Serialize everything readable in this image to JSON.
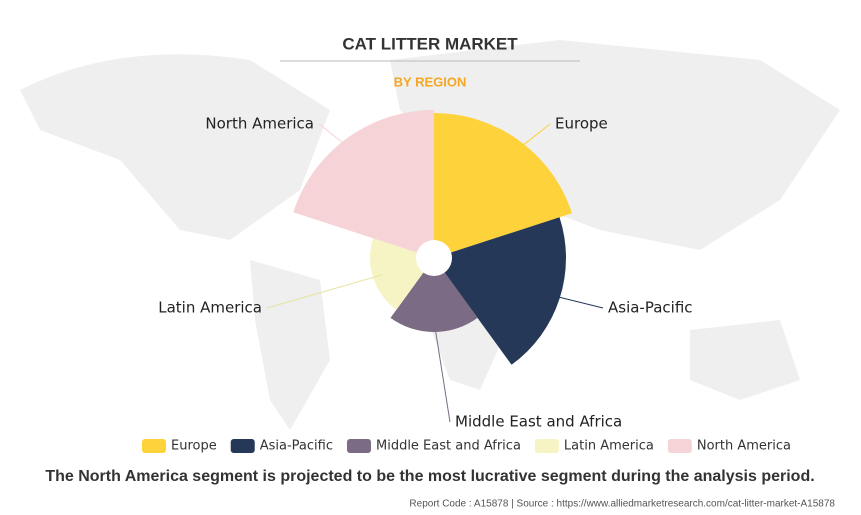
{
  "chart_data": {
    "type": "rose",
    "title": "CAT LITTER MARKET",
    "subtitle": "BY REGION",
    "categories": [
      "Europe",
      "Asia-Pacific",
      "Middle East and Africa",
      "Latin America",
      "North America"
    ],
    "values": [
      145,
      132,
      74,
      64,
      148
    ],
    "colors": [
      "#fdd23a",
      "#253858",
      "#7b6b85",
      "#f6f4c4",
      "#f5d3d6"
    ],
    "caption": "The North America segment is projected to be the most lucrative segment during the analysis period.",
    "source": "Report Code : A15878  |  Source : https://www.alliedmarketresearch.com/cat-litter-market-A15878"
  }
}
